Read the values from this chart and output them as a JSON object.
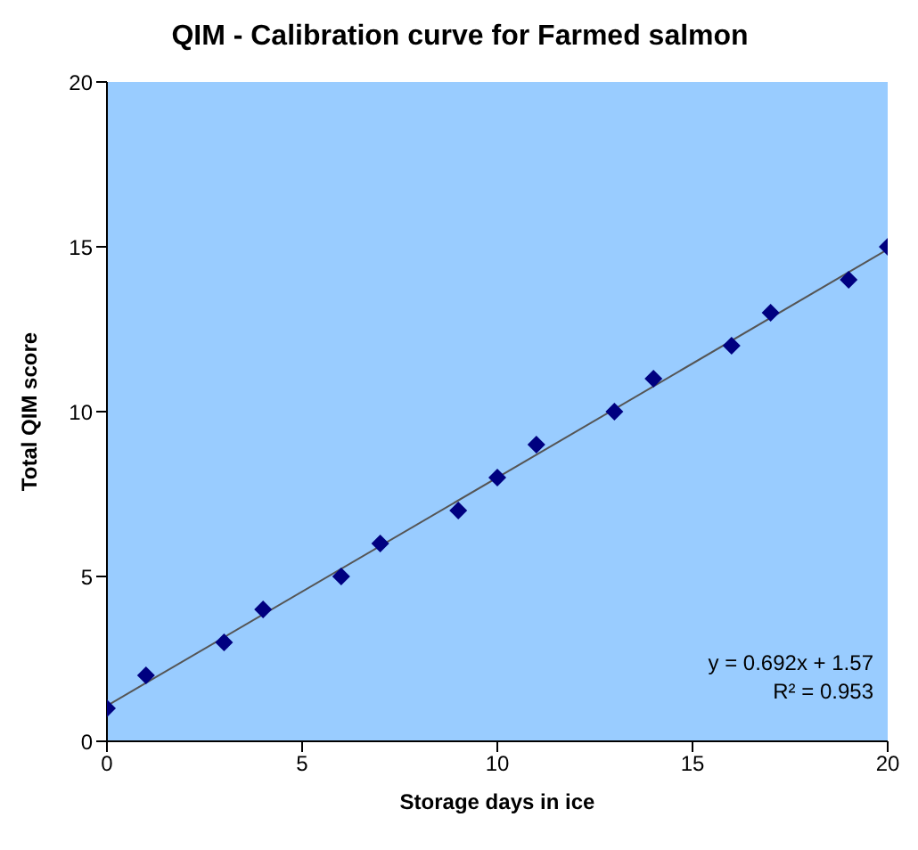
{
  "chart_data": {
    "type": "scatter",
    "title": "QIM - Calibration curve for Farmed salmon",
    "xlabel": "Storage days in ice",
    "ylabel": "Total QIM score",
    "x": [
      0,
      1,
      3,
      4,
      6,
      7,
      9,
      10,
      11,
      13,
      14,
      16,
      17,
      19,
      20
    ],
    "series": [
      {
        "color": "#000080",
        "values": [
          1,
          2,
          3,
          4,
          5,
          6,
          7,
          8,
          9,
          10,
          11,
          12,
          13,
          14,
          15
        ],
        "marker": "diamond"
      },
      {
        "type": "line",
        "color": "#555555",
        "x": [
          0,
          20
        ],
        "values": [
          1.08,
          14.92
        ],
        "marker": "none"
      }
    ],
    "xlim": [
      0,
      20
    ],
    "xticks": [
      0,
      5,
      10,
      15,
      20
    ],
    "ylim": [
      0,
      20
    ],
    "yticks": [
      0,
      5,
      10,
      15,
      20
    ],
    "grid": false,
    "annotations": [
      "y = 0.692x + 1.57",
      "R² = 0.953"
    ]
  }
}
